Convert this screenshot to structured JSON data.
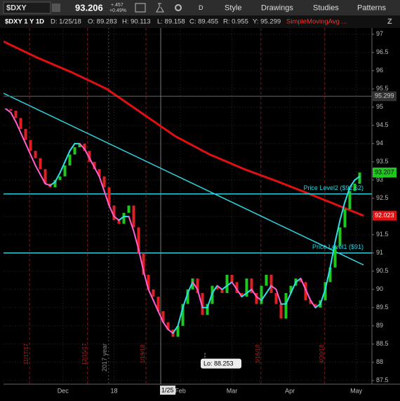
{
  "header": {
    "symbol": "$DXY",
    "last": "93.206",
    "change": "+.457",
    "change_pct": "+0.49%",
    "aggregation": "D",
    "buttons": [
      "Style",
      "Drawings",
      "Studies",
      "Patterns"
    ],
    "info": [
      "$DXY 1 Y 1D",
      "D: 1/25/18",
      "O: 89.283",
      "H: 90.113",
      "L: 89.158",
      "C: 89.455",
      "R: 0.955",
      "Y: 95.299"
    ],
    "study": "SimpleMovingAvg ..."
  },
  "chart_data": {
    "type": "candlestick",
    "xlim": [
      0,
      75
    ],
    "ylim": [
      87.4,
      97.17
    ],
    "xticks": [
      {
        "value": 12.1,
        "label": "Dec"
      },
      {
        "value": 22.5,
        "label": "18"
      },
      {
        "value": 36,
        "label": "Feb"
      },
      {
        "value": 46.5,
        "label": "Mar"
      },
      {
        "value": 58.3,
        "label": "Apr"
      },
      {
        "value": 71.8,
        "label": "May"
      }
    ],
    "yticks": [
      87.5,
      88,
      88.5,
      89,
      89.5,
      90,
      90.5,
      91,
      91.5,
      92,
      92.5,
      93,
      93.5,
      94,
      94.5,
      95,
      95.5,
      96,
      96.5,
      97
    ],
    "grid": true,
    "up_color": "#1ec81e",
    "down_color": "#e02020",
    "close": [
      94.95,
      94.9,
      94.7,
      94.4,
      94.1,
      93.8,
      93.6,
      93.3,
      92.9,
      92.8,
      93.0,
      93.1,
      93.4,
      93.7,
      93.9,
      94.0,
      93.8,
      93.5,
      93.3,
      93.1,
      92.8,
      92.3,
      91.9,
      91.8,
      92.1,
      92.3,
      91.7,
      91.0,
      90.4,
      90.0,
      89.8,
      89.4,
      89.1,
      88.9,
      88.7,
      89.0,
      89.6,
      90.0,
      90.3,
      89.9,
      89.3,
      89.6,
      90.1,
      90.0,
      89.9,
      90.4,
      90.2,
      89.9,
      89.8,
      90.3,
      89.9,
      89.6,
      90.1,
      90.4,
      89.9,
      89.6,
      89.2,
      89.9,
      90.1,
      90.3,
      90.2,
      89.7,
      89.6,
      89.5,
      89.7,
      90.2,
      90.6,
      91.2,
      91.7,
      92.2,
      92.7,
      92.9,
      93.206
    ],
    "sma_short": {
      "up_color": "#2fe0e8",
      "down_color": "#ff5fd0",
      "values": [
        94.95,
        94.85,
        94.6,
        94.3,
        94.0,
        93.7,
        93.4,
        93.15,
        92.9,
        92.85,
        92.95,
        93.2,
        93.5,
        93.8,
        94.0,
        94.0,
        93.85,
        93.6,
        93.35,
        93.1,
        92.7,
        92.3,
        92.0,
        91.9,
        92.0,
        92.0,
        91.6,
        91.1,
        90.5,
        90.0,
        89.7,
        89.4,
        89.1,
        88.9,
        88.8,
        89.0,
        89.5,
        89.9,
        90.2,
        90.0,
        89.5,
        89.5,
        89.9,
        90.1,
        90.0,
        90.1,
        90.2,
        90.0,
        89.8,
        89.9,
        90.0,
        89.8,
        89.7,
        89.9,
        90.1,
        90.0,
        89.6,
        89.6,
        89.9,
        90.2,
        90.3,
        90.0,
        89.7,
        89.5,
        89.6,
        90.0,
        90.6,
        91.3,
        91.9,
        92.4,
        92.8,
        93.0,
        93.1
      ]
    },
    "sma_long": {
      "color": "#e01010",
      "x": [
        0,
        7,
        14,
        21,
        28,
        35,
        42,
        49,
        56,
        63,
        70,
        73.3
      ],
      "values": [
        96.8,
        96.35,
        95.95,
        95.5,
        94.85,
        94.2,
        93.7,
        93.3,
        92.95,
        92.58,
        92.2,
        92.023
      ]
    },
    "trendline": {
      "color": "#2fd3e0",
      "x": [
        0,
        73.3
      ],
      "values": [
        95.38,
        90.67
      ]
    },
    "levels": [
      {
        "value": 92.62,
        "label": "Price Level2 ($92.62)"
      },
      {
        "value": 91,
        "label": "Price Level1 ($91)"
      }
    ],
    "level_color": "#2fd3e0",
    "prior_close": 95.299,
    "last_price": 93.207,
    "sma_last": 92.023,
    "events": [
      {
        "x": 5.3,
        "label": "11/17/17"
      },
      {
        "x": 17.1,
        "label": "12/15/17"
      },
      {
        "x": 29,
        "label": "1/19/18"
      },
      {
        "x": 52.4,
        "label": "3/16/18"
      },
      {
        "x": 65.4,
        "label": "4/20/18"
      }
    ],
    "year_marker": {
      "x": 21.4,
      "label": "2017 year"
    },
    "cursor": {
      "x": 32,
      "label": "1/25"
    },
    "low_marker": {
      "x": 41,
      "value": 88.253,
      "label": "Lo: 88.253"
    }
  }
}
